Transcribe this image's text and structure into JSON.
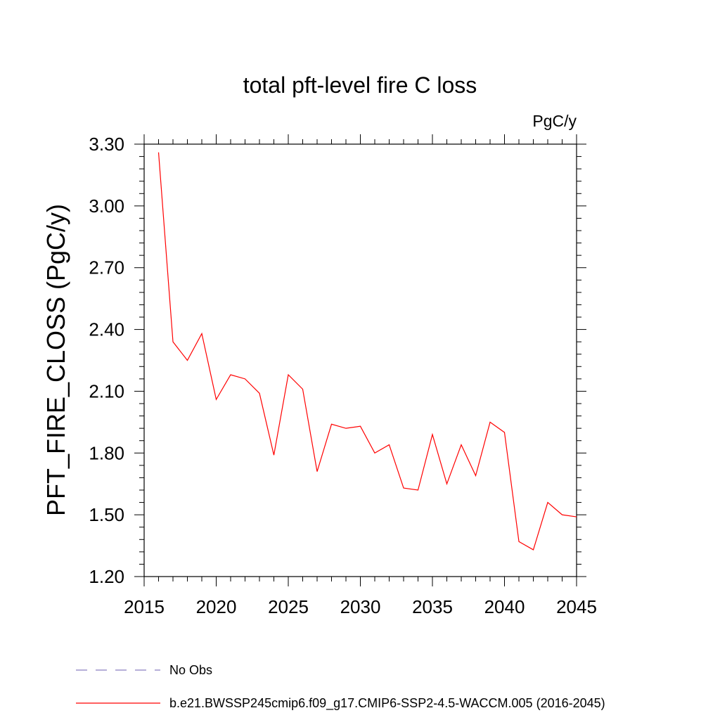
{
  "chart_data": {
    "type": "line",
    "title": "total pft-level fire C loss",
    "units_label": "PgC/y",
    "ylabel": "PFT_FIRE_CLOSS  (PgC/y)",
    "xlabel": "",
    "xlim": [
      2015,
      2045
    ],
    "ylim": [
      1.2,
      3.3
    ],
    "x_ticks": [
      "2015",
      "2020",
      "2025",
      "2030",
      "2035",
      "2040",
      "2045"
    ],
    "y_ticks": [
      "1.20",
      "1.50",
      "1.80",
      "2.10",
      "2.40",
      "2.70",
      "3.00",
      "3.30"
    ],
    "grid": false,
    "legend_position": "bottom-left",
    "series": [
      {
        "name": "b.e21.BWSSP245cmip6.f09_g17.CMIP6-SSP2-4.5-WACCM.005 (2016-2045)",
        "color": "#ff0000",
        "style": "solid",
        "x": [
          2016,
          2017,
          2018,
          2019,
          2020,
          2021,
          2022,
          2023,
          2024,
          2025,
          2026,
          2027,
          2028,
          2029,
          2030,
          2031,
          2032,
          2033,
          2034,
          2035,
          2036,
          2037,
          2038,
          2039,
          2040,
          2041,
          2042,
          2043,
          2044,
          2045
        ],
        "values": [
          3.26,
          2.34,
          2.25,
          2.38,
          2.06,
          2.18,
          2.16,
          2.09,
          1.79,
          2.18,
          2.11,
          1.71,
          1.94,
          1.92,
          1.93,
          1.8,
          1.84,
          1.63,
          1.62,
          1.89,
          1.65,
          1.84,
          1.69,
          1.95,
          1.9,
          1.37,
          1.33,
          1.56,
          1.5,
          1.49
        ]
      }
    ],
    "legend_extra": {
      "name": "No Obs",
      "color": "#8a7fc0",
      "style": "dashed"
    }
  }
}
